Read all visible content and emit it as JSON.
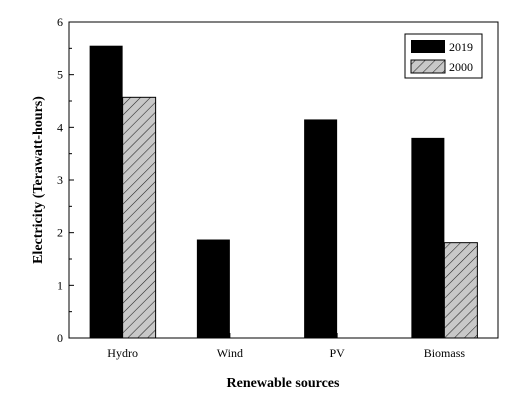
{
  "chart_data": {
    "type": "bar",
    "categories": [
      "Hydro",
      "Wind",
      "PV",
      "Biomass"
    ],
    "series": [
      {
        "name": "2019",
        "values": [
          5.55,
          1.87,
          4.15,
          3.8
        ],
        "color": "#000000",
        "pattern": "solid"
      },
      {
        "name": "2000",
        "values": [
          4.57,
          0,
          0,
          1.81
        ],
        "color": "#c8c8c8",
        "pattern": "hatched"
      }
    ],
    "xlabel": "Renewable sources",
    "ylabel": "Electricity (Terawatt-hours)",
    "ylim": [
      0,
      6
    ],
    "yticks": [
      "0",
      "1",
      "2",
      "3",
      "4",
      "5",
      "6"
    ],
    "grid": false,
    "legend_position": "top-right"
  }
}
